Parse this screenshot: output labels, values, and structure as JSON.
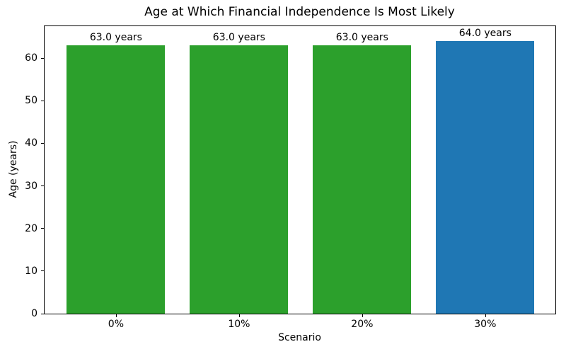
{
  "chart_data": {
    "type": "bar",
    "title": "Age at Which Financial Independence Is Most Likely",
    "xlabel": "Scenario",
    "ylabel": "Age (years)",
    "categories": [
      "0%",
      "10%",
      "20%",
      "30%"
    ],
    "values": [
      63.0,
      63.0,
      63.0,
      64.0
    ],
    "bar_labels": [
      "63.0 years",
      "63.0 years",
      "63.0 years",
      "64.0 years"
    ],
    "bar_colors": [
      "#2ca02c",
      "#2ca02c",
      "#2ca02c",
      "#1f77b4"
    ],
    "yticks": [
      0,
      10,
      20,
      30,
      40,
      50,
      60
    ],
    "ylim": [
      0,
      67.5
    ],
    "grid": false,
    "legend": "none",
    "background_color": "#ffffff",
    "axis_color": "#000000"
  }
}
